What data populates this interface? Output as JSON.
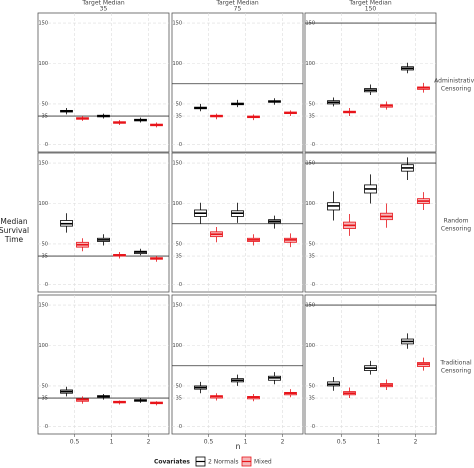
{
  "facet_title": "Target Median",
  "row_labels": [
    [
      "Administrative",
      "Censoring"
    ],
    [
      "Random",
      "Censoring"
    ],
    [
      "Traditional",
      "Censoring"
    ]
  ],
  "y_label": [
    "Median",
    "Survival",
    "Time"
  ],
  "x_label": "n",
  "legend_title": "Covariates",
  "chart_data": [
    {
      "type": "boxplot",
      "reference": 35,
      "categories": [
        "0.5",
        "1",
        "2"
      ],
      "ylim": [
        -7,
        160
      ],
      "yticks": [
        0,
        35,
        50,
        100,
        150
      ],
      "grid": true,
      "series": [
        {
          "name": "2 Normals",
          "color": "#000000",
          "values": [
            [
              37,
              40,
              41,
              42,
              45
            ],
            [
              32,
              34,
              35,
              36,
              38
            ],
            [
              27,
              29,
              30,
              31,
              33
            ]
          ]
        },
        {
          "name": "Mixed",
          "color": "#e8141a",
          "values": [
            [
              29,
              31,
              32,
              33,
              35
            ],
            [
              24,
              26,
              27,
              28,
              30
            ],
            [
              21,
              23,
              24,
              25,
              27
            ]
          ]
        }
      ]
    },
    {
      "type": "boxplot",
      "reference": 75,
      "categories": [
        "0.5",
        "1",
        "2"
      ],
      "ylim": [
        -7,
        160
      ],
      "yticks": [
        0,
        35,
        50,
        100,
        150
      ],
      "grid": true,
      "series": [
        {
          "name": "2 Normals",
          "color": "#000000",
          "values": [
            [
              41,
              44,
              45,
              46,
              50
            ],
            [
              46,
              49,
              50,
              51,
              55
            ],
            [
              49,
              52,
              53,
              54,
              57
            ]
          ]
        },
        {
          "name": "Mixed",
          "color": "#e8141a",
          "values": [
            [
              31,
              34,
              35,
              36,
              38
            ],
            [
              30,
              33,
              34,
              35,
              37
            ],
            [
              35,
              38,
              39,
              40,
              42
            ]
          ]
        }
      ]
    },
    {
      "type": "boxplot",
      "reference": 150,
      "categories": [
        "0.5",
        "1",
        "2"
      ],
      "ylim": [
        -7,
        160
      ],
      "yticks": [
        0,
        35,
        50,
        100,
        150
      ],
      "grid": true,
      "series": [
        {
          "name": "2 Normals",
          "color": "#000000",
          "values": [
            [
              47,
              50,
              52,
              54,
              58
            ],
            [
              61,
              65,
              67,
              69,
              74
            ],
            [
              88,
              92,
              94,
              96,
              101
            ]
          ]
        },
        {
          "name": "Mixed",
          "color": "#e8141a",
          "values": [
            [
              35,
              39,
              40,
              41,
              45
            ],
            [
              43,
              46,
              48,
              49,
              53
            ],
            [
              64,
              68,
              70,
              71,
              76
            ]
          ]
        }
      ]
    },
    {
      "type": "boxplot",
      "reference": 35,
      "categories": [
        "0.5",
        "1",
        "2"
      ],
      "ylim": [
        -7,
        160
      ],
      "yticks": [
        0,
        35,
        50,
        100,
        150
      ],
      "grid": true,
      "series": [
        {
          "name": "2 Normals",
          "color": "#000000",
          "values": [
            [
              64,
              72,
              75,
              79,
              88
            ],
            [
              48,
              53,
              55,
              57,
              62
            ],
            [
              36,
              38,
              40,
              41,
              44
            ]
          ]
        },
        {
          "name": "Mixed",
          "color": "#e8141a",
          "values": [
            [
              41,
              46,
              49,
              52,
              57
            ],
            [
              32,
              35,
              36,
              37,
              40
            ],
            [
              28,
              31,
              32,
              33,
              35
            ]
          ]
        }
      ]
    },
    {
      "type": "boxplot",
      "reference": 75,
      "categories": [
        "0.5",
        "1",
        "2"
      ],
      "ylim": [
        -7,
        160
      ],
      "yticks": [
        0,
        35,
        50,
        100,
        150
      ],
      "grid": true,
      "series": [
        {
          "name": "2 Normals",
          "color": "#000000",
          "values": [
            [
              75,
              84,
              88,
              92,
              101
            ],
            [
              76,
              84,
              88,
              91,
              101
            ],
            [
              69,
              76,
              78,
              80,
              85
            ]
          ]
        },
        {
          "name": "Mixed",
          "color": "#e8141a",
          "values": [
            [
              52,
              59,
              62,
              65,
              71
            ],
            [
              48,
              53,
              55,
              57,
              62
            ],
            [
              46,
              52,
              55,
              57,
              63
            ]
          ]
        }
      ]
    },
    {
      "type": "boxplot",
      "reference": 150,
      "categories": [
        "0.5",
        "1",
        "2"
      ],
      "ylim": [
        -7,
        160
      ],
      "yticks": [
        0,
        35,
        50,
        100,
        150
      ],
      "grid": true,
      "series": [
        {
          "name": "2 Normals",
          "color": "#000000",
          "values": [
            [
              79,
              92,
              97,
              101,
              115
            ],
            [
              100,
              113,
              118,
              123,
              136
            ],
            [
              129,
              140,
              144,
              148,
              157
            ]
          ]
        },
        {
          "name": "Mixed",
          "color": "#e8141a",
          "values": [
            [
              60,
              69,
              73,
              77,
              87
            ],
            [
              70,
              80,
              84,
              88,
              100
            ],
            [
              92,
              100,
              103,
              106,
              114
            ]
          ]
        }
      ]
    },
    {
      "type": "boxplot",
      "reference": 35,
      "categories": [
        "0.5",
        "1",
        "2"
      ],
      "ylim": [
        -7,
        160
      ],
      "yticks": [
        0,
        35,
        50,
        100,
        150
      ],
      "grid": true,
      "series": [
        {
          "name": "2 Normals",
          "color": "#000000",
          "values": [
            [
              37,
              41,
              43,
              45,
              49
            ],
            [
              33,
              36,
              37,
              38,
              40
            ],
            [
              29,
              31,
              32,
              33,
              35
            ]
          ]
        },
        {
          "name": "Mixed",
          "color": "#e8141a",
          "values": [
            [
              28,
              31,
              33,
              34,
              37
            ],
            [
              27,
              29,
              30,
              31,
              32
            ],
            [
              26,
              28,
              29,
              30,
              31
            ]
          ]
        }
      ]
    },
    {
      "type": "boxplot",
      "reference": 75,
      "categories": [
        "0.5",
        "1",
        "2"
      ],
      "ylim": [
        -7,
        160
      ],
      "yticks": [
        0,
        35,
        50,
        100,
        150
      ],
      "grid": true,
      "series": [
        {
          "name": "2 Normals",
          "color": "#000000",
          "values": [
            [
              41,
              46,
              48,
              50,
              55
            ],
            [
              50,
              55,
              57,
              59,
              64
            ],
            [
              52,
              57,
              60,
              62,
              67
            ]
          ]
        },
        {
          "name": "Mixed",
          "color": "#e8141a",
          "values": [
            [
              32,
              35,
              37,
              38,
              41
            ],
            [
              31,
              34,
              36,
              37,
              40
            ],
            [
              36,
              39,
              41,
              42,
              46
            ]
          ]
        }
      ]
    },
    {
      "type": "boxplot",
      "reference": 150,
      "categories": [
        "0.5",
        "1",
        "2"
      ],
      "ylim": [
        -7,
        160
      ],
      "yticks": [
        0,
        35,
        50,
        100,
        150
      ],
      "grid": true,
      "series": [
        {
          "name": "2 Normals",
          "color": "#000000",
          "values": [
            [
              44,
              50,
              52,
              55,
              61
            ],
            [
              64,
              69,
              72,
              75,
              81
            ],
            [
              96,
              102,
              105,
              108,
              115
            ]
          ]
        },
        {
          "name": "Mixed",
          "color": "#e8141a",
          "values": [
            [
              35,
              39,
              41,
              43,
              48
            ],
            [
              45,
              49,
              51,
              53,
              58
            ],
            [
              69,
              74,
              77,
              79,
              85
            ]
          ]
        }
      ]
    }
  ]
}
